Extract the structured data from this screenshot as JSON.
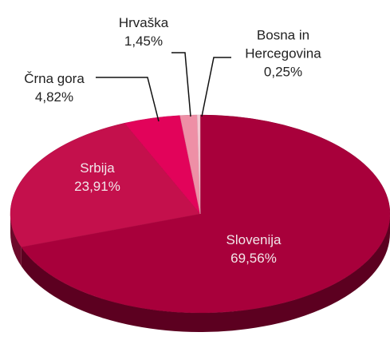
{
  "chart_data": {
    "type": "pie",
    "categories": [
      "Slovenija",
      "Srbija",
      "Črna gora",
      "Hrvaška",
      "Bosna in Hercegovina"
    ],
    "values": [
      69.56,
      23.91,
      4.82,
      1.45,
      0.25
    ],
    "value_labels": [
      "69,56%",
      "23,91%",
      "4,82%",
      "1,45%",
      "0,25%"
    ],
    "colors": [
      "#a8003b",
      "#c4104c",
      "#e2035a",
      "#ee8fa6",
      "#f6c9d4"
    ]
  }
}
